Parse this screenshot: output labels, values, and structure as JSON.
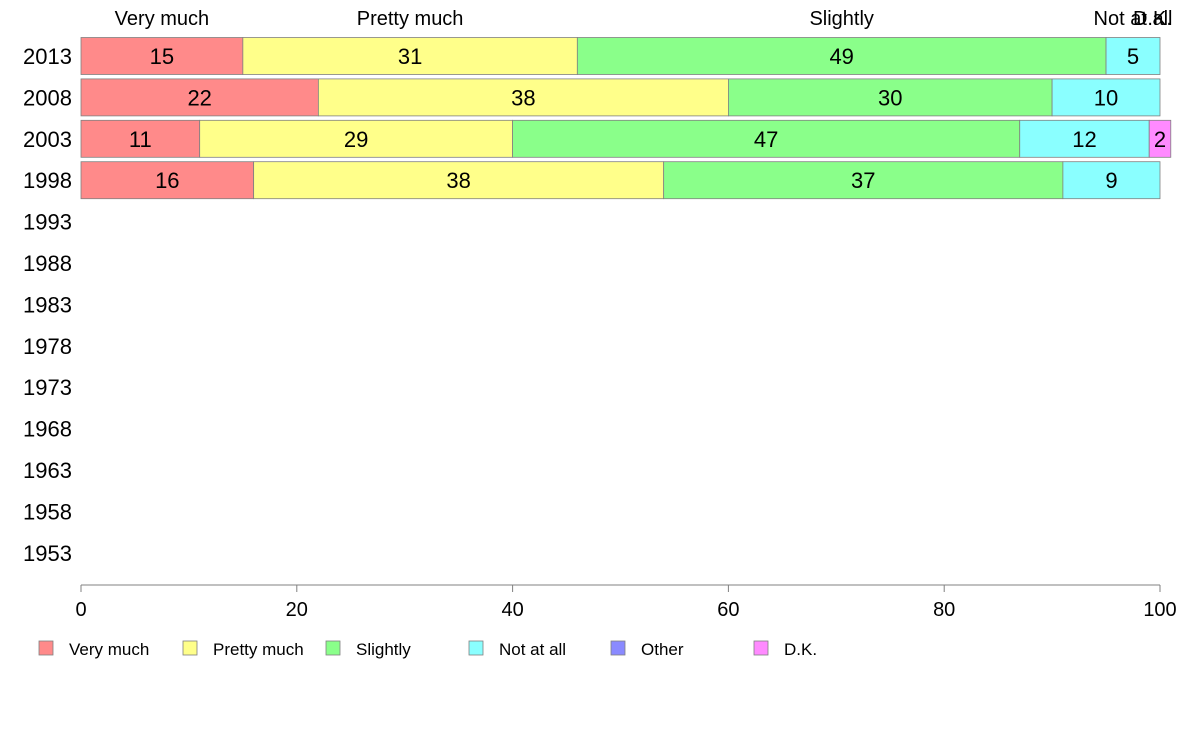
{
  "chart_data": {
    "type": "bar",
    "orientation": "horizontal",
    "stacked": true,
    "categories": [
      "2013",
      "2008",
      "2003",
      "1998",
      "1993",
      "1988",
      "1983",
      "1978",
      "1973",
      "1968",
      "1963",
      "1958",
      "1953"
    ],
    "series": [
      {
        "name": "Very much",
        "color": "#FF8A8A",
        "values": [
          15,
          22,
          11,
          16,
          null,
          null,
          null,
          null,
          null,
          null,
          null,
          null,
          null
        ]
      },
      {
        "name": "Pretty much",
        "color": "#FFFF8A",
        "values": [
          31,
          38,
          29,
          38,
          null,
          null,
          null,
          null,
          null,
          null,
          null,
          null,
          null
        ]
      },
      {
        "name": "Slightly",
        "color": "#8AFF8A",
        "values": [
          49,
          30,
          47,
          37,
          null,
          null,
          null,
          null,
          null,
          null,
          null,
          null,
          null
        ]
      },
      {
        "name": "Not at all",
        "color": "#8AFFFF",
        "values": [
          5,
          10,
          12,
          9,
          null,
          null,
          null,
          null,
          null,
          null,
          null,
          null,
          null
        ]
      },
      {
        "name": "Other",
        "color": "#8A8AFF",
        "values": [
          0,
          0,
          0,
          0,
          null,
          null,
          null,
          null,
          null,
          null,
          null,
          null,
          null
        ]
      },
      {
        "name": "D.K.",
        "color": "#FF8AFF",
        "values": [
          0,
          0,
          2,
          0,
          null,
          null,
          null,
          null,
          null,
          null,
          null,
          null,
          null
        ]
      }
    ],
    "top_labels": [
      {
        "text": "Very much",
        "at": 7.5
      },
      {
        "text": "Pretty much",
        "at": 30.5
      },
      {
        "text": "Slightly",
        "at": 70.5
      },
      {
        "text": "Not at all",
        "at": 97.5
      },
      {
        "text": "D.K.",
        "at": 99.3
      }
    ],
    "x_ticks": [
      "0",
      "20",
      "40",
      "60",
      "80",
      "100"
    ],
    "xlim": [
      0,
      100
    ],
    "grid": false,
    "legend_position": "bottom"
  }
}
